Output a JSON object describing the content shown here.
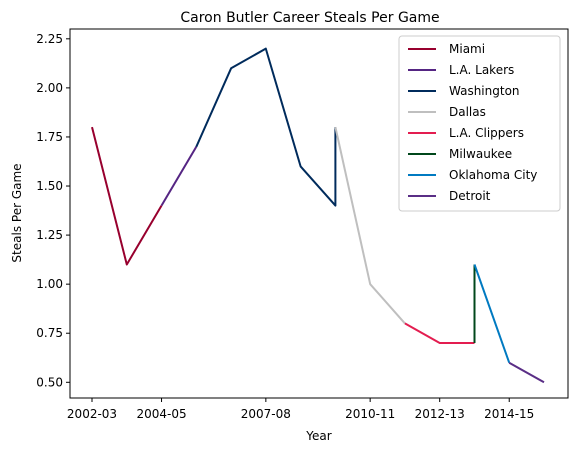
{
  "chart_data": {
    "type": "line",
    "title": "Caron Butler Career Steals Per Game",
    "xlabel": "Year",
    "ylabel": "Steals Per Game",
    "x_labels": [
      "2002-03",
      "2003-04",
      "2004-05",
      "2005-06",
      "2006-07",
      "2007-08",
      "2008-09",
      "2009-10",
      "2010-11",
      "2011-12",
      "2012-13",
      "2013-14",
      "2014-15",
      "2015-16"
    ],
    "x_ticks": [
      "2002-03",
      "2004-05",
      "2007-08",
      "2010-11",
      "2012-13",
      "2014-15"
    ],
    "ylim": [
      0.42,
      2.3
    ],
    "y_ticks": [
      "0.50",
      "0.75",
      "1.00",
      "1.25",
      "1.50",
      "1.75",
      "2.00",
      "2.25"
    ],
    "grid": false,
    "legend_position": "upper right",
    "series": [
      {
        "name": "Miami",
        "color": "#98002e",
        "points": [
          [
            "2002-03",
            1.8
          ],
          [
            "2003-04",
            1.1
          ],
          [
            "2004-05",
            1.4
          ]
        ]
      },
      {
        "name": "L.A. Lakers",
        "color": "#552583",
        "points": [
          [
            "2004-05",
            1.4
          ],
          [
            "2005-06",
            1.7
          ]
        ]
      },
      {
        "name": "Washington",
        "color": "#002b5c",
        "points": [
          [
            "2005-06",
            1.7
          ],
          [
            "2006-07",
            2.1
          ],
          [
            "2007-08",
            2.2
          ],
          [
            "2008-09",
            1.6
          ],
          [
            "2009-10",
            1.4
          ],
          [
            "2009-10",
            1.8
          ]
        ]
      },
      {
        "name": "Dallas",
        "color": "#bfbfbf",
        "points": [
          [
            "2009-10",
            1.8
          ],
          [
            "2010-11",
            1.0
          ],
          [
            "2011-12",
            0.8
          ]
        ]
      },
      {
        "name": "L.A. Clippers",
        "color": "#e31d50",
        "points": [
          [
            "2011-12",
            0.8
          ],
          [
            "2012-13",
            0.7
          ],
          [
            "2013-14",
            0.7
          ]
        ]
      },
      {
        "name": "Milwaukee",
        "color": "#00471b",
        "points": [
          [
            "2013-14",
            0.7
          ],
          [
            "2013-14",
            1.1
          ]
        ]
      },
      {
        "name": "Oklahoma City",
        "color": "#007ac1",
        "points": [
          [
            "2013-14",
            1.1
          ],
          [
            "2014-15",
            0.6
          ]
        ]
      },
      {
        "name": "Detroit",
        "color": "#5a2e86",
        "points": [
          [
            "2014-15",
            0.6
          ],
          [
            "2015-16",
            0.5
          ]
        ]
      }
    ]
  }
}
